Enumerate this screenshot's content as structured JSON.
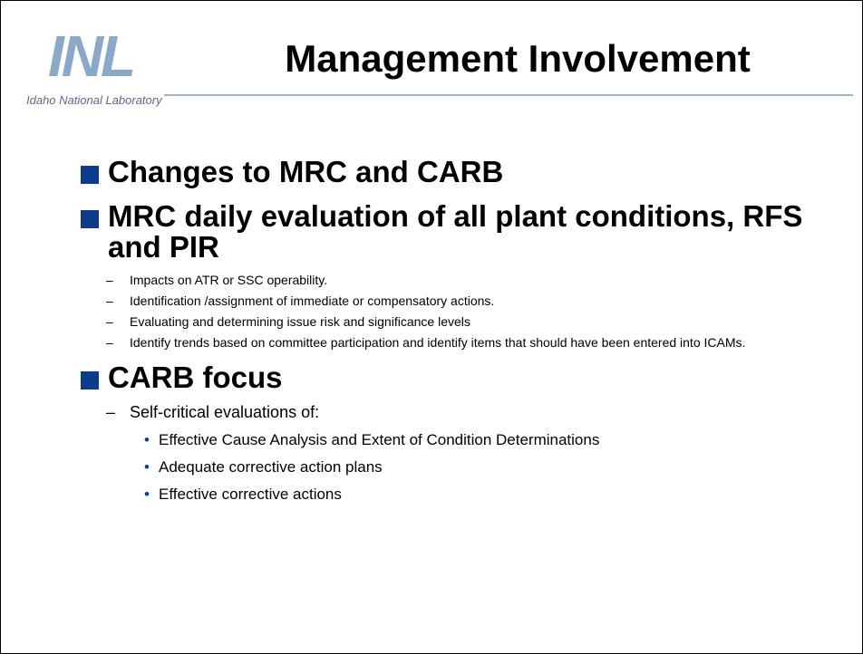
{
  "header": {
    "logo_text": "INL",
    "logo_subtext": "Idaho National Laboratory",
    "title": "Management Involvement"
  },
  "bullets": [
    {
      "text": "Changes to MRC and CARB",
      "items": []
    },
    {
      "text": "MRC daily evaluation of all plant conditions, RFS and PIR",
      "items": [
        {
          "text": "Impacts on ATR or SSC operability.",
          "items": []
        },
        {
          "text": "Identification /assignment of immediate or compensatory actions.",
          "items": []
        },
        {
          "text": "Evaluating and determining issue risk and significance levels",
          "items": []
        },
        {
          "text": "Identify trends based on committee participation and identify items that should have been entered into ICAMs.",
          "items": []
        }
      ]
    },
    {
      "text": "CARB focus",
      "items": [
        {
          "text": "Self-critical evaluations of:",
          "items": [
            "Effective Cause Analysis and Extent of Condition Determinations",
            "Adequate corrective action plans",
            "Effective corrective actions"
          ]
        }
      ]
    }
  ]
}
